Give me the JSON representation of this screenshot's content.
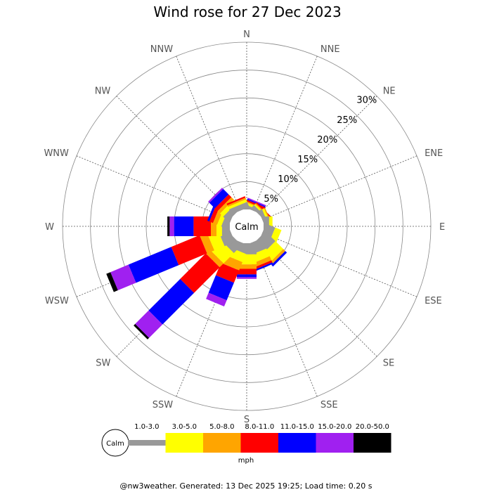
{
  "chart_data": {
    "type": "wind-rose",
    "title": "Wind rose for 27 Dec 2023",
    "calm_label": "Calm",
    "unit": "mph",
    "footer": "@nw3weather. Generated: 13 Dec 2025 19:25; Load time: 0.20 s",
    "radial_axis": {
      "max": 30,
      "ticks": [
        5,
        10,
        15,
        20,
        25,
        30
      ],
      "tick_labels": [
        "5%",
        "10%",
        "15%",
        "20%",
        "25%",
        "30%"
      ]
    },
    "directions": [
      "N",
      "NNE",
      "NE",
      "ENE",
      "E",
      "ESE",
      "SE",
      "SSE",
      "S",
      "SSW",
      "SW",
      "WSW",
      "W",
      "WNW",
      "NW",
      "NNW"
    ],
    "bins": [
      {
        "label": "1.0-3.0",
        "color": "#999999"
      },
      {
        "label": "3.0-5.0",
        "color": "#ffff00"
      },
      {
        "label": "5.0-8.0",
        "color": "#ffa500"
      },
      {
        "label": "8.0-11.0",
        "color": "#ff0000"
      },
      {
        "label": "11.0-15.0",
        "color": "#0000ff"
      },
      {
        "label": "15.0-20.0",
        "color": "#a020f0"
      },
      {
        "label": "20.0-50.0",
        "color": "#000000"
      }
    ],
    "data": [
      {
        "direction": "N",
        "values": [
          0.4,
          0.5,
          0.2,
          0,
          0,
          0,
          0
        ]
      },
      {
        "direction": "NNE",
        "values": [
          0.5,
          0.4,
          0.2,
          0.3,
          0.2,
          0.2,
          0
        ]
      },
      {
        "direction": "NE",
        "values": [
          0.6,
          0.3,
          0.2,
          0.2,
          0,
          0,
          0
        ]
      },
      {
        "direction": "ENE",
        "values": [
          0.7,
          0.4,
          0.2,
          0,
          0,
          0,
          0
        ]
      },
      {
        "direction": "E",
        "values": [
          1.0,
          0.6,
          0,
          0,
          0,
          0,
          0
        ]
      },
      {
        "direction": "ESE",
        "values": [
          1.8,
          1.2,
          0,
          0,
          0,
          0,
          0
        ]
      },
      {
        "direction": "SE",
        "values": [
          2.5,
          2.0,
          0.5,
          0,
          0.4,
          0,
          0
        ]
      },
      {
        "direction": "SSE",
        "values": [
          2.0,
          1.5,
          0.8,
          0.4,
          0.3,
          0,
          0
        ]
      },
      {
        "direction": "S",
        "values": [
          2.0,
          1.8,
          0.8,
          1.0,
          0.5,
          0.3,
          0
        ]
      },
      {
        "direction": "SSW",
        "values": [
          1.6,
          1.6,
          1.6,
          2.4,
          3.4,
          1.2,
          0
        ]
      },
      {
        "direction": "SW",
        "values": [
          2.0,
          2.6,
          1.0,
          6.5,
          8.0,
          3.4,
          0.4
        ]
      },
      {
        "direction": "WSW",
        "values": [
          2.0,
          2.0,
          1.4,
          5.5,
          8.3,
          3.5,
          0.8
        ]
      },
      {
        "direction": "W",
        "values": [
          1.4,
          1.0,
          1.0,
          3.1,
          3.5,
          0.8,
          0.4
        ]
      },
      {
        "direction": "WNW",
        "values": [
          1.2,
          0.8,
          0.8,
          0.7,
          0.4,
          0,
          0
        ]
      },
      {
        "direction": "NW",
        "values": [
          1.2,
          0.8,
          0.6,
          0.7,
          1.4,
          0.3,
          0
        ]
      },
      {
        "direction": "NNW",
        "values": [
          1.0,
          0.5,
          0.3,
          0.3,
          0,
          0,
          0
        ]
      }
    ]
  }
}
